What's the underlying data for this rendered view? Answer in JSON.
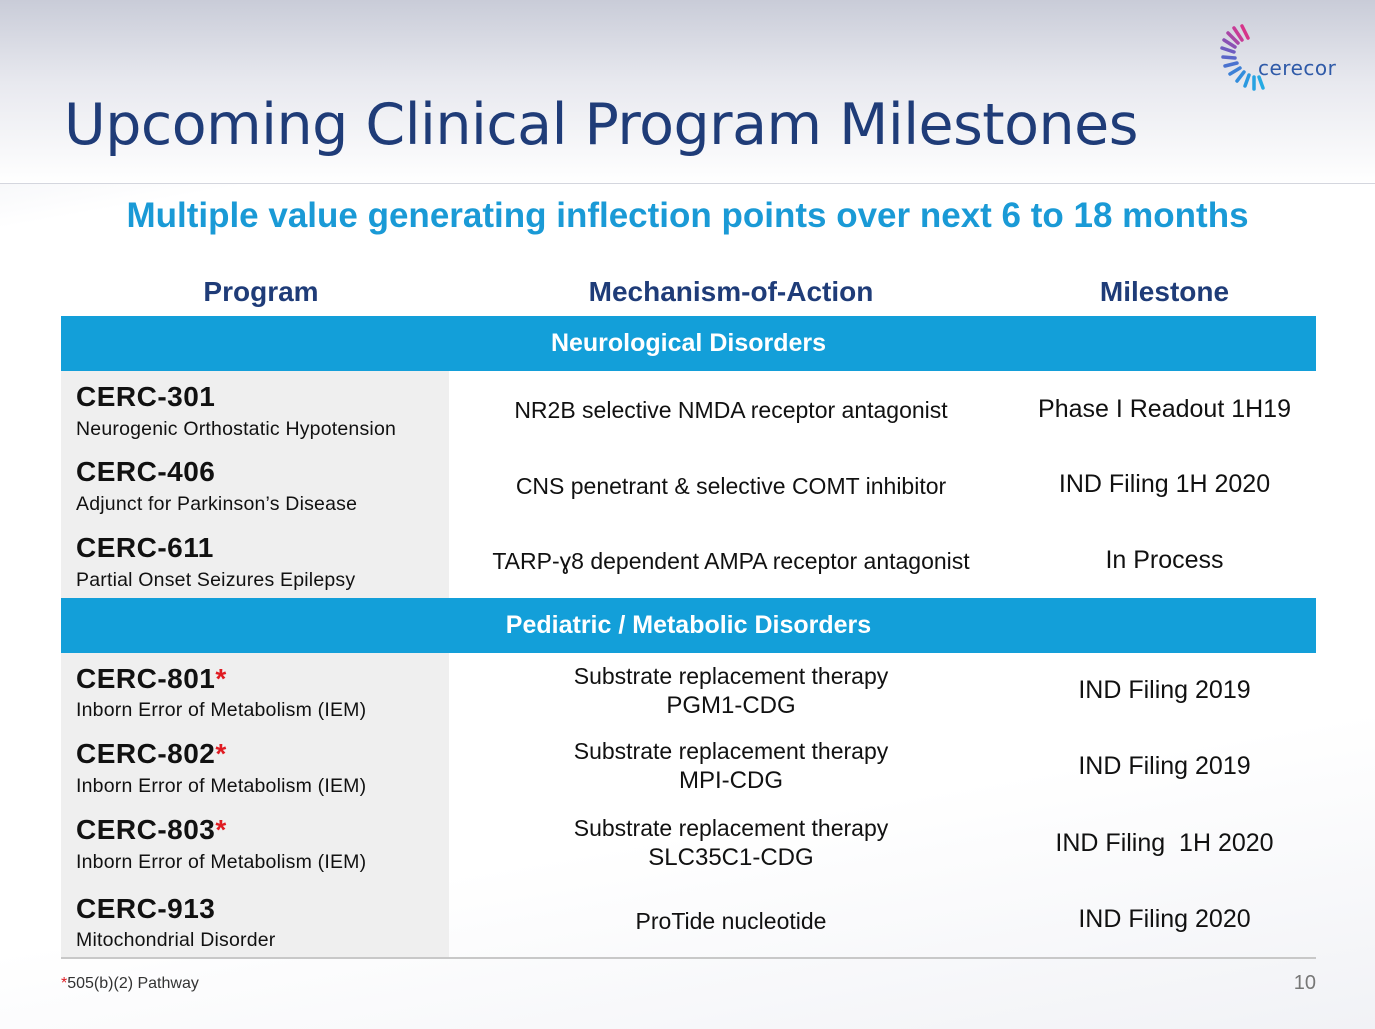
{
  "title": "Upcoming Clinical Program Milestones",
  "subtitle": "Multiple value generating inflection points over next 6 to 18 months",
  "logo": {
    "text": "cerecor"
  },
  "columns": {
    "program": "Program",
    "mechanism": "Mechanism-of-Action",
    "milestone": "Milestone"
  },
  "sections": [
    {
      "title": "Neurological Disorders",
      "rows": [
        {
          "name": "CERC-301",
          "star": "",
          "desc": "Neurogenic Orthostatic Hypotension",
          "moa1": "NR2B selective NMDA receptor antagonist",
          "moa2": "",
          "milestone": "Phase I Readout 1H19"
        },
        {
          "name": "CERC-406",
          "star": "",
          "desc": "Adjunct for Parkinson’s Disease",
          "moa1": "CNS penetrant & selective COMT inhibitor",
          "moa2": "",
          "milestone": "IND Filing 1H 2020"
        },
        {
          "name": "CERC-611",
          "star": "",
          "desc": "Partial Onset Seizures Epilepsy",
          "moa1": "TARP-ɣ8 dependent AMPA receptor antagonist",
          "moa2": "",
          "milestone": "In Process"
        }
      ]
    },
    {
      "title": "Pediatric / Metabolic Disorders",
      "rows": [
        {
          "name": "CERC-801",
          "star": "*",
          "desc": "Inborn Error of Metabolism (IEM)",
          "moa1": "Substrate replacement therapy",
          "moa2": "PGM1-CDG",
          "milestone": "IND Filing 2019"
        },
        {
          "name": "CERC-802",
          "star": "*",
          "desc": "Inborn Error of Metabolism (IEM)",
          "moa1": "Substrate replacement therapy",
          "moa2": "MPI-CDG",
          "milestone": "IND Filing 2019"
        },
        {
          "name": "CERC-803",
          "star": "*",
          "desc": "Inborn Error of Metabolism (IEM)",
          "moa1": "Substrate replacement therapy",
          "moa2": "SLC35C1-CDG",
          "milestone": "IND Filing  1H 2020"
        },
        {
          "name": "CERC-913",
          "star": "",
          "desc": "Mitochondrial Disorder",
          "moa1": "ProTide nucleotide",
          "moa2": "",
          "milestone": "IND Filing 2020"
        }
      ]
    }
  ],
  "footnote": {
    "star": "*",
    "text": "505(b)(2) Pathway"
  },
  "page_number": "10",
  "colors": {
    "title": "#1f3c78",
    "subtitle": "#1a9ad6",
    "section_band": "#139fd9",
    "asterisk": "#e01b22"
  }
}
